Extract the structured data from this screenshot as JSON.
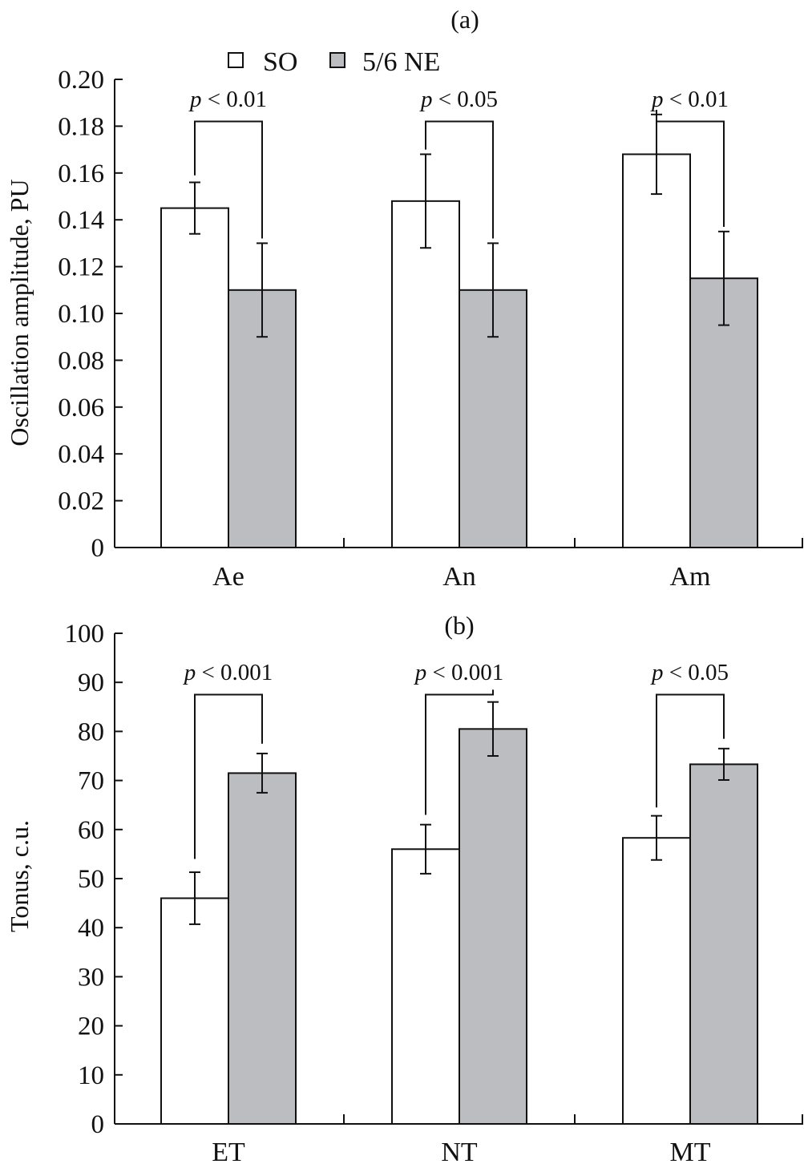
{
  "legend": {
    "items": [
      {
        "label": "SO",
        "color": "#ffffff"
      },
      {
        "label": "5/6 NE",
        "color": "#bcbdc0"
      }
    ]
  },
  "chart_data": [
    {
      "type": "bar",
      "title": "(a)",
      "xlabel": "",
      "ylabel": "Oscillation amplitude, PU",
      "ylim": [
        0,
        0.2
      ],
      "yticks": [
        "0",
        "0.02",
        "0.04",
        "0.06",
        "0.08",
        "0.10",
        "0.12",
        "0.14",
        "0.16",
        "0.18",
        "0.20"
      ],
      "categories": [
        "Ae",
        "An",
        "Am"
      ],
      "series": [
        {
          "name": "SO",
          "values": [
            0.145,
            0.148,
            0.168
          ],
          "errors": [
            0.011,
            0.02,
            0.017
          ],
          "color": "#ffffff"
        },
        {
          "name": "5/6 NE",
          "values": [
            0.11,
            0.11,
            0.115
          ],
          "errors": [
            0.02,
            0.02,
            0.02
          ],
          "color": "#bcbdc0"
        }
      ],
      "annotations": [
        {
          "label": "p",
          "text": " < 0.01",
          "top": 0.182,
          "so_drop": 0.159,
          "ne_drop": 0.132
        },
        {
          "label": "p",
          "text": " < 0.05",
          "top": 0.182,
          "so_drop": 0.17,
          "ne_drop": 0.132
        },
        {
          "label": "p",
          "text": " < 0.01",
          "top": 0.182,
          "so_drop": 0.187,
          "ne_drop": 0.137
        }
      ]
    },
    {
      "type": "bar",
      "title": "(b)",
      "xlabel": "",
      "ylabel": "Tonus, c.u.",
      "ylim": [
        0,
        100
      ],
      "yticks": [
        "0",
        "10",
        "20",
        "30",
        "40",
        "50",
        "60",
        "70",
        "80",
        "90",
        "100"
      ],
      "categories": [
        "ET",
        "NT",
        "MT"
      ],
      "series": [
        {
          "name": "SO",
          "values": [
            46,
            56,
            58.3
          ],
          "errors": [
            5.3,
            5,
            4.5
          ],
          "color": "#ffffff"
        },
        {
          "name": "5/6 NE",
          "values": [
            71.5,
            80.5,
            73.3
          ],
          "errors": [
            4,
            5.5,
            3.2
          ],
          "color": "#bcbdc0"
        }
      ],
      "annotations": [
        {
          "label": "p",
          "text": " < 0.001",
          "top": 87.5,
          "so_drop": 54,
          "ne_drop": 77.5
        },
        {
          "label": "p",
          "text": " < 0.001",
          "top": 87.5,
          "so_drop": 63,
          "ne_drop": 88.5
        },
        {
          "label": "p",
          "text": " < 0.05",
          "top": 87.5,
          "so_drop": 64.5,
          "ne_drop": 78.5
        }
      ]
    }
  ]
}
